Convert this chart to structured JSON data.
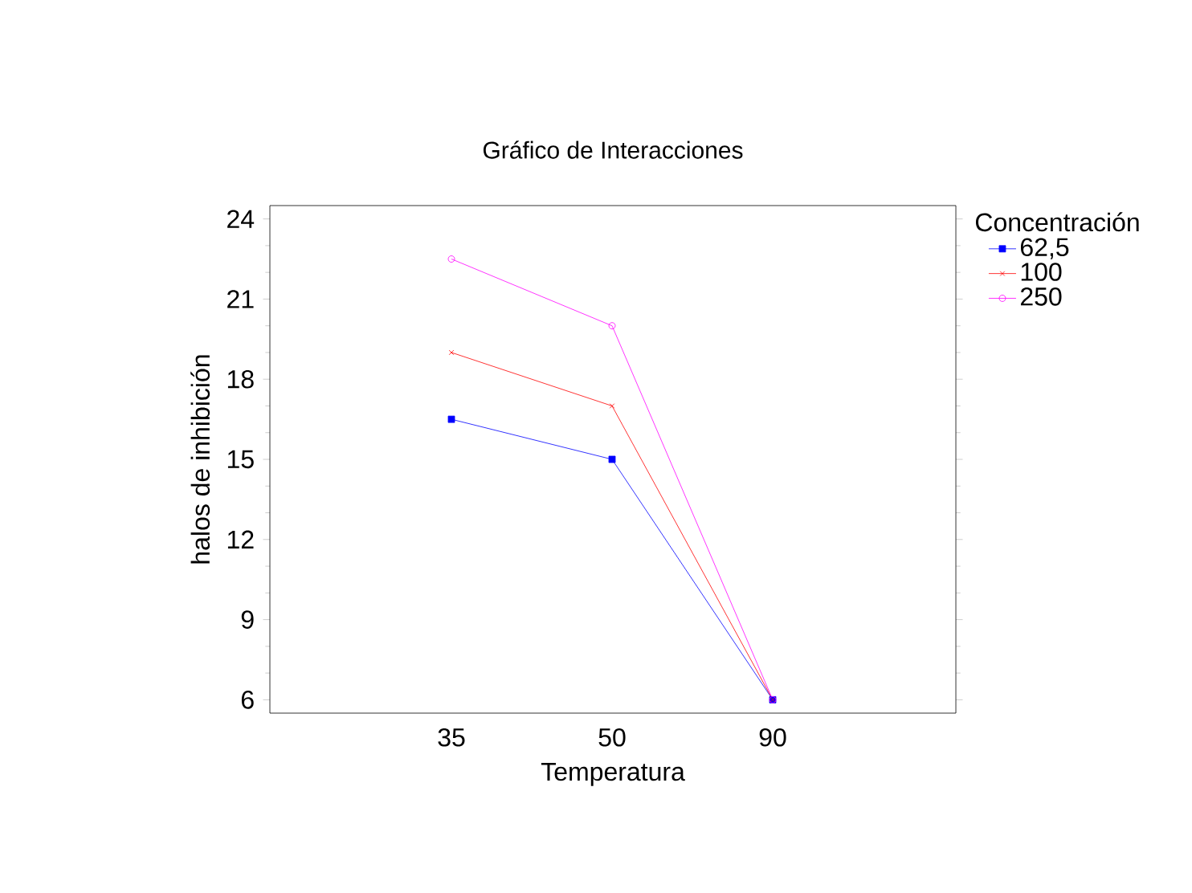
{
  "chart_data": {
    "type": "line",
    "title": "Gráfico de Interacciones",
    "xlabel": "Temperatura",
    "ylabel": "halos de inhibición",
    "legend_title": "Concentración",
    "categories": [
      "35",
      "50",
      "90"
    ],
    "series": [
      {
        "name": "62,5",
        "color": "#0000ff",
        "marker": "square",
        "values": [
          16.5,
          15,
          6
        ]
      },
      {
        "name": "100",
        "color": "#ff0000",
        "marker": "cross",
        "values": [
          19,
          17,
          6
        ]
      },
      {
        "name": "250",
        "color": "#ff00ff",
        "marker": "circle",
        "values": [
          22.5,
          20,
          6
        ]
      }
    ],
    "ylim": [
      5.5,
      24.5
    ],
    "yticks": [
      6,
      9,
      12,
      15,
      18,
      21,
      24
    ],
    "grid": false,
    "legend": "right",
    "line_style": "solid"
  }
}
